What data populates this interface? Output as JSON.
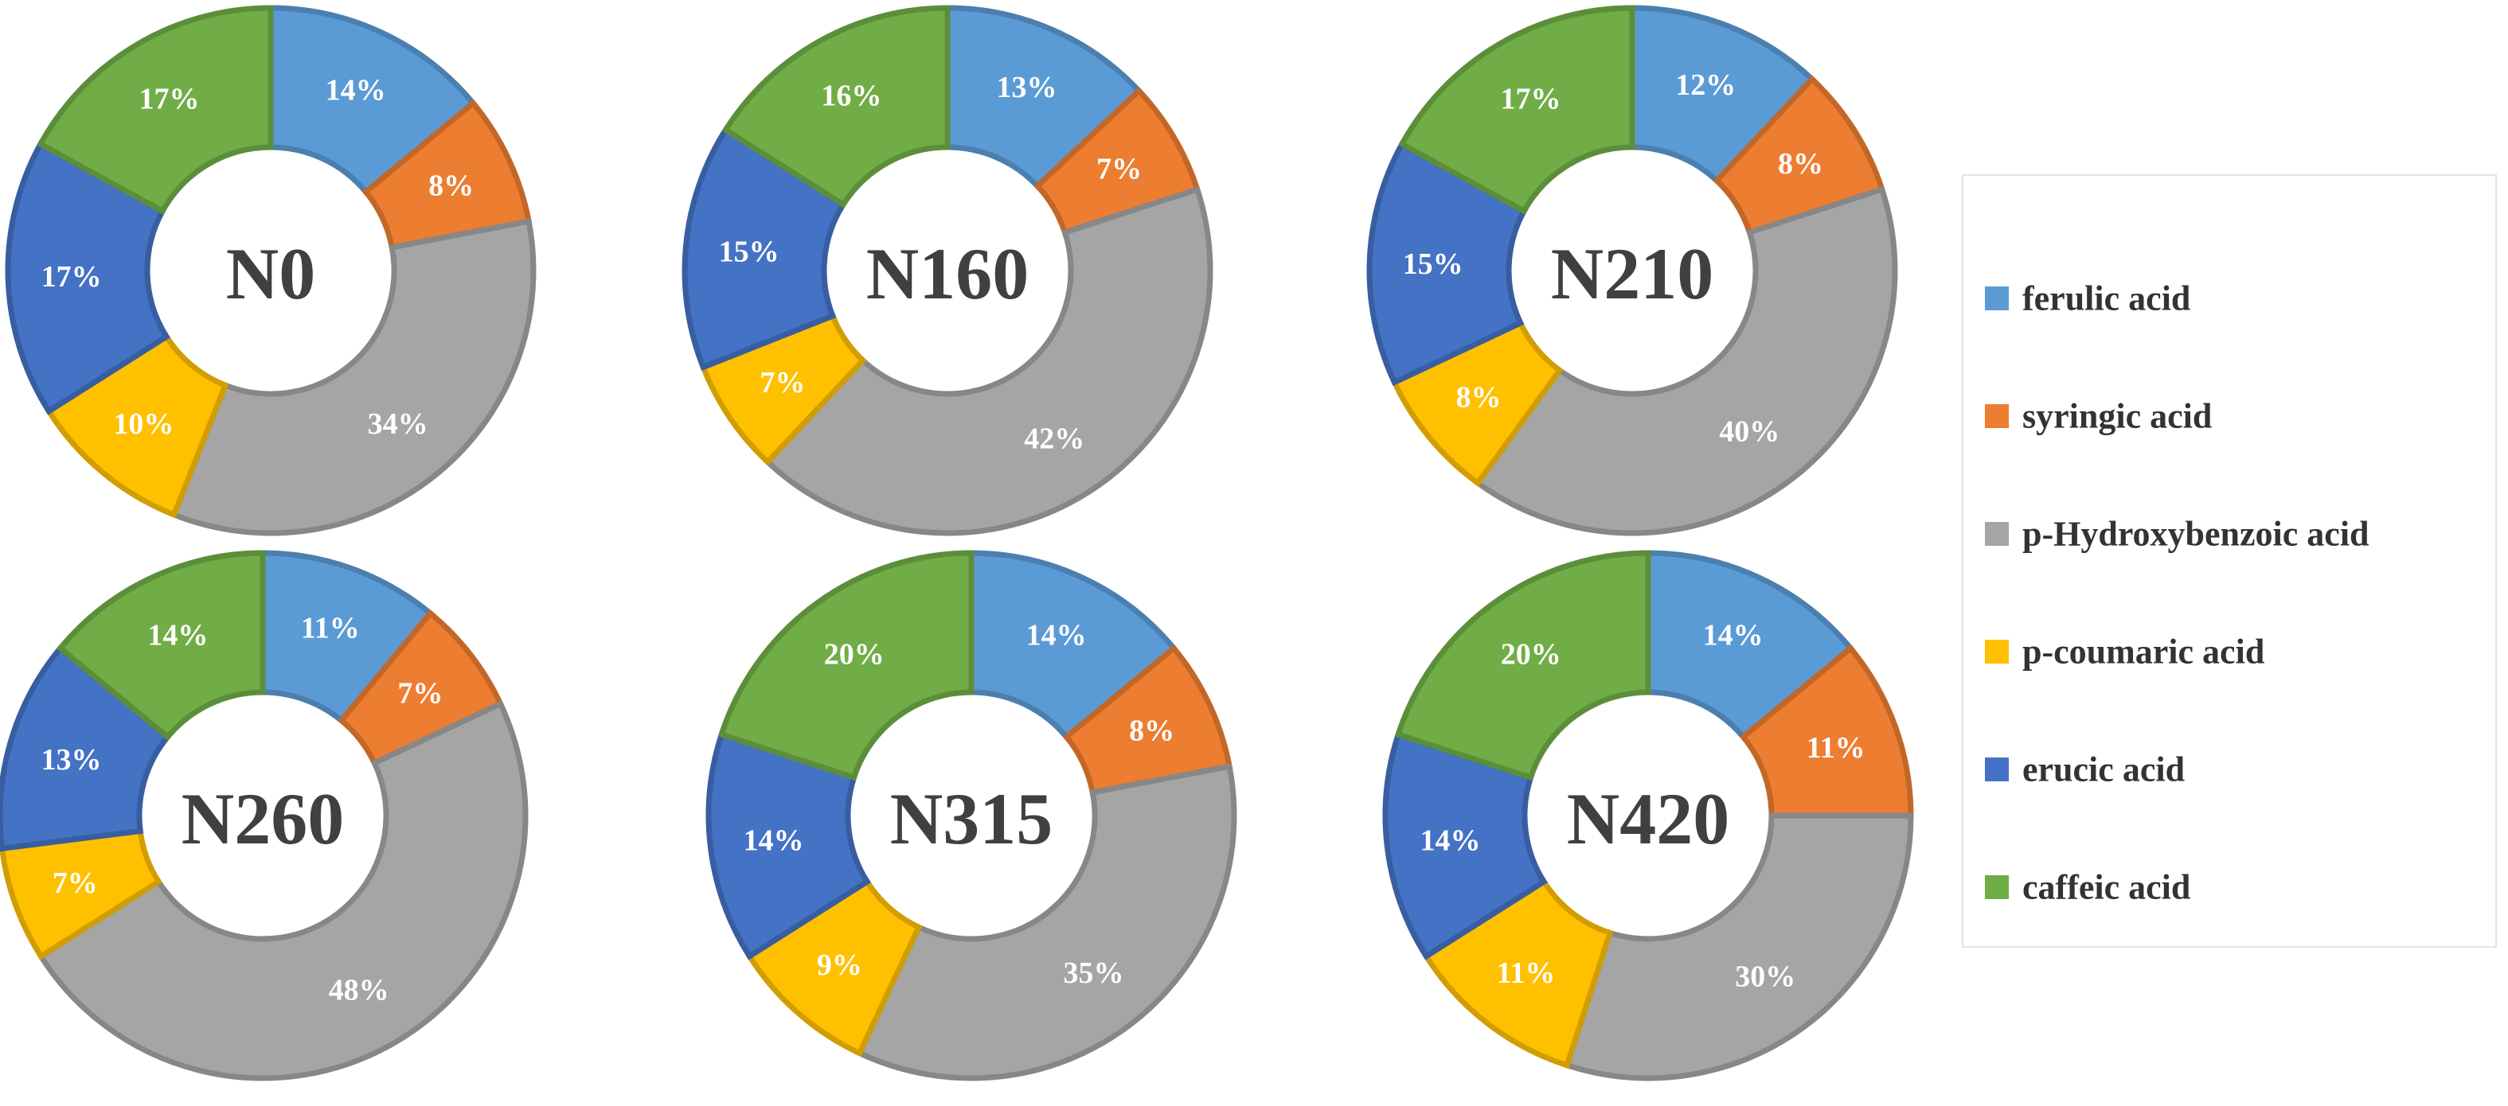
{
  "chart_data": {
    "type": "pie",
    "variant": "donut",
    "legend": {
      "placement": "right",
      "entries": [
        {
          "name": "ferulic acid",
          "color": "#5B9BD5"
        },
        {
          "name": "syringic acid",
          "color": "#ED7D31"
        },
        {
          "name": "p-Hydroxybenzoic acid",
          "color": "#A5A5A5"
        },
        {
          "name": "p-coumaric acid",
          "color": "#FFC000"
        },
        {
          "name": "erucic acid",
          "color": "#4472C4"
        },
        {
          "name": "caffeic acid",
          "color": "#70AD47"
        }
      ]
    },
    "charts": [
      {
        "title": "N0",
        "values": [
          14,
          8,
          34,
          10,
          17,
          17
        ],
        "labels": [
          "14%",
          "8%",
          "34%",
          "10%",
          "17%",
          "17%"
        ]
      },
      {
        "title": "N160",
        "values": [
          13,
          7,
          42,
          7,
          15,
          16
        ],
        "labels": [
          "13%",
          "7%",
          "42%",
          "7%",
          "15%",
          "16%"
        ]
      },
      {
        "title": "N210",
        "values": [
          12,
          8,
          40,
          8,
          15,
          17
        ],
        "labels": [
          "12%",
          "8%",
          "40%",
          "8%",
          "15%",
          "17%"
        ]
      },
      {
        "title": "N260",
        "values": [
          11,
          7,
          48,
          7,
          13,
          14
        ],
        "labels": [
          "11%",
          "7%",
          "48%",
          "7%",
          "13%",
          "14%"
        ]
      },
      {
        "title": "N315",
        "values": [
          14,
          8,
          35,
          9,
          14,
          20
        ],
        "labels": [
          "14%",
          "8%",
          "35%",
          "9%",
          "14%",
          "20%"
        ]
      },
      {
        "title": "N420",
        "values": [
          14,
          11,
          30,
          11,
          14,
          20
        ],
        "labels": [
          "14%",
          "11%",
          "30%",
          "11%",
          "14%",
          "20%"
        ]
      }
    ]
  }
}
